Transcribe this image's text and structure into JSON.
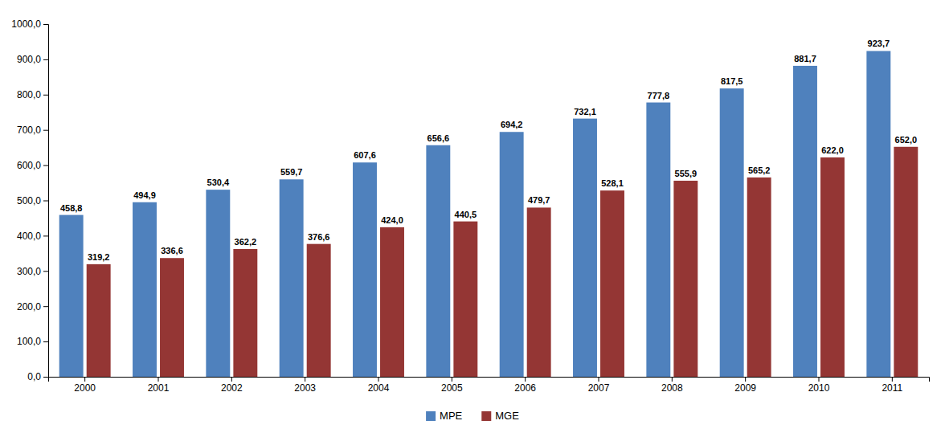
{
  "chart_data": {
    "type": "bar",
    "categories": [
      "2000",
      "2001",
      "2002",
      "2003",
      "2004",
      "2005",
      "2006",
      "2007",
      "2008",
      "2009",
      "2010",
      "2011"
    ],
    "series": [
      {
        "name": "MPE",
        "color": "#4f81bd",
        "values": [
          458.8,
          494.9,
          530.4,
          559.7,
          607.6,
          656.6,
          694.2,
          732.1,
          777.8,
          817.5,
          881.7,
          923.7
        ],
        "value_labels": [
          "458,8",
          "494,9",
          "530,4",
          "559,7",
          "607,6",
          "656,6",
          "694,2",
          "732,1",
          "777,8",
          "817,5",
          "881,7",
          "923,7"
        ]
      },
      {
        "name": "MGE",
        "color": "#943634",
        "values": [
          319.2,
          336.6,
          362.2,
          376.6,
          424.0,
          440.5,
          479.7,
          528.1,
          555.9,
          565.2,
          622.0,
          652.0
        ],
        "value_labels": [
          "319,2",
          "336,6",
          "362,2",
          "376,6",
          "424,0",
          "440,5",
          "479,7",
          "528,1",
          "555,9",
          "565,2",
          "622,0",
          "652,0"
        ]
      }
    ],
    "ylim": [
      0,
      1000
    ],
    "yticks": [
      {
        "value": 0,
        "label": "0,0"
      },
      {
        "value": 100,
        "label": "100,0"
      },
      {
        "value": 200,
        "label": "200,0"
      },
      {
        "value": 300,
        "label": "300,0"
      },
      {
        "value": 400,
        "label": "400,0"
      },
      {
        "value": 500,
        "label": "500,0"
      },
      {
        "value": 600,
        "label": "600,0"
      },
      {
        "value": 700,
        "label": "700,0"
      },
      {
        "value": 800,
        "label": "800,0"
      },
      {
        "value": 900,
        "label": "900,0"
      },
      {
        "value": 1000,
        "label": "1000,0"
      }
    ],
    "grid": false,
    "legend": "bottom",
    "data_labels": true
  }
}
